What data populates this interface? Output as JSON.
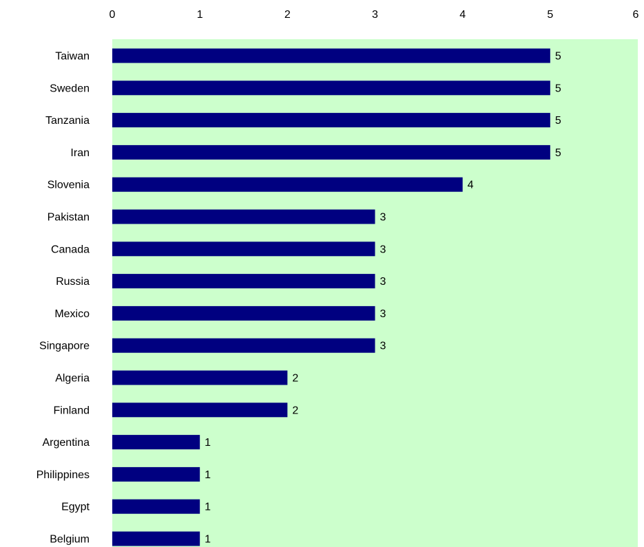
{
  "chart_data": {
    "type": "bar",
    "orientation": "horizontal",
    "categories": [
      "Taiwan",
      "Sweden",
      "Tanzania",
      "Iran",
      "Slovenia",
      "Pakistan",
      "Canada",
      "Russia",
      "Mexico",
      "Singapore",
      "Algeria",
      "Finland",
      "Argentina",
      "Philippines",
      "Egypt",
      "Belgium"
    ],
    "values": [
      5,
      5,
      5,
      5,
      4,
      3,
      3,
      3,
      3,
      3,
      2,
      2,
      1,
      1,
      1,
      1
    ],
    "title": "",
    "xlabel": "",
    "ylabel": "",
    "xlim": [
      0,
      6
    ],
    "xticks": [
      0,
      1,
      2,
      3,
      4,
      5,
      6
    ],
    "x_axis_position": "top",
    "data_labels": true,
    "grid": false,
    "legend": "none",
    "colors": {
      "bar": "#000080",
      "plot_background": "#ccffcc",
      "page_background": "#ffffff",
      "text": "#000000"
    }
  }
}
